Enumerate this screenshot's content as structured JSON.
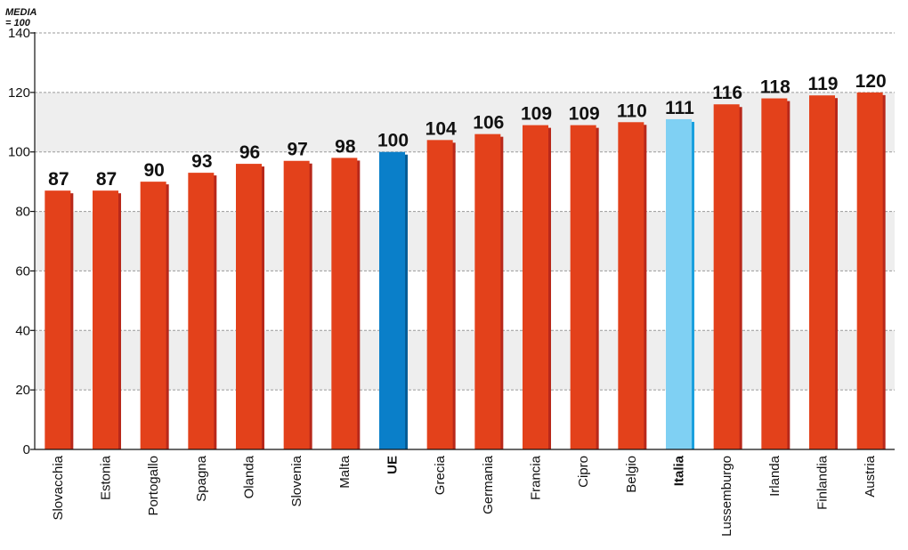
{
  "chart_data": {
    "type": "bar",
    "unit_label": [
      "MEDIA",
      "= 100"
    ],
    "ylim": [
      0,
      140
    ],
    "yticks": [
      0,
      20,
      40,
      60,
      80,
      100,
      120,
      140
    ],
    "grid": true,
    "categories": [
      "Slovacchia",
      "Estonia",
      "Portogallo",
      "Spagna",
      "Olanda",
      "Slovenia",
      "Malta",
      "UE",
      "Grecia",
      "Germania",
      "Francia",
      "Cipro",
      "Belgio",
      "Italia",
      "Lussemburgo",
      "Irlanda",
      "Finlandia",
      "Austria"
    ],
    "values": [
      87,
      87,
      90,
      93,
      96,
      97,
      98,
      100,
      104,
      106,
      109,
      109,
      110,
      111,
      116,
      118,
      119,
      120
    ],
    "highlight": {
      "UE": "#0a7fc9",
      "Italia": "#7fd0f3"
    },
    "bold_categories": [
      "UE",
      "Italia"
    ],
    "colors": {
      "bar": "#e3411b",
      "bar_shadow": "#b8281a",
      "ue_shadow": "#055d96",
      "italia_shadow": "#1aa0de",
      "band": "#eeeeee",
      "grid": "#9a9a9a"
    }
  }
}
